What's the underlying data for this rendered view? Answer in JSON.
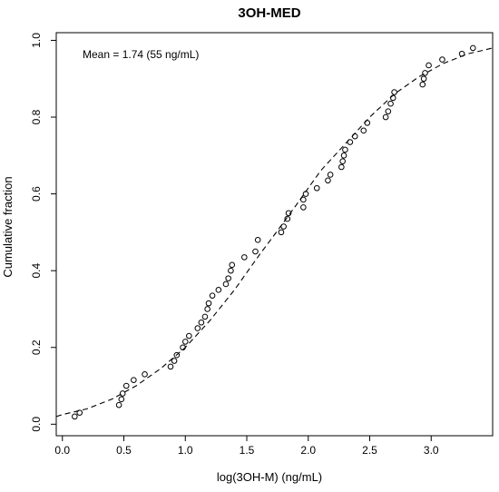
{
  "chart_data": {
    "type": "scatter",
    "title": "3OH-MED",
    "xlabel": "log(3OH-M) (ng/mL)",
    "ylabel": "Cumulative fraction",
    "annotation": "Mean = 1.74 (55 ng/mL)",
    "xlim": [
      -0.05,
      3.5
    ],
    "ylim": [
      -0.03,
      1.02
    ],
    "x_ticks": [
      "0.0",
      "0.5",
      "1.0",
      "1.5",
      "2.0",
      "2.5",
      "3.0"
    ],
    "y_ticks": [
      "0.0",
      "0.2",
      "0.4",
      "0.6",
      "0.8",
      "1.0"
    ],
    "grid": false,
    "series": [
      {
        "style": "open-circle",
        "x": [
          0.1,
          0.14,
          0.46,
          0.48,
          0.49,
          0.52,
          0.58,
          0.67,
          0.88,
          0.91,
          0.93,
          0.98,
          1.0,
          1.03,
          1.1,
          1.13,
          1.16,
          1.18,
          1.19,
          1.22,
          1.27,
          1.33,
          1.35,
          1.37,
          1.38,
          1.48,
          1.57,
          1.59,
          1.78,
          1.8,
          1.83,
          1.84,
          1.96,
          1.96,
          1.98,
          2.07,
          2.16,
          2.18,
          2.27,
          2.28,
          2.29,
          2.3,
          2.34,
          2.38,
          2.45,
          2.48,
          2.63,
          2.65,
          2.67,
          2.69,
          2.7,
          2.93,
          2.94,
          2.95,
          2.98,
          3.09,
          3.25,
          3.34
        ],
        "y": [
          0.02,
          0.03,
          0.05,
          0.065,
          0.08,
          0.1,
          0.115,
          0.13,
          0.15,
          0.165,
          0.18,
          0.2,
          0.215,
          0.23,
          0.25,
          0.265,
          0.28,
          0.3,
          0.315,
          0.335,
          0.35,
          0.365,
          0.38,
          0.4,
          0.415,
          0.435,
          0.45,
          0.48,
          0.5,
          0.515,
          0.535,
          0.55,
          0.565,
          0.585,
          0.6,
          0.615,
          0.635,
          0.65,
          0.67,
          0.685,
          0.7,
          0.715,
          0.735,
          0.75,
          0.765,
          0.785,
          0.8,
          0.815,
          0.835,
          0.85,
          0.865,
          0.885,
          0.9,
          0.915,
          0.935,
          0.95,
          0.965,
          0.98
        ]
      },
      {
        "style": "dashed-line",
        "x": [
          -0.05,
          0.0,
          0.2,
          0.4,
          0.6,
          0.8,
          1.0,
          1.2,
          1.4,
          1.6,
          1.74,
          1.9,
          2.1,
          2.3,
          2.5,
          2.7,
          2.9,
          3.1,
          3.3,
          3.5
        ],
        "y": [
          0.02,
          0.025,
          0.04,
          0.065,
          0.1,
          0.145,
          0.2,
          0.27,
          0.35,
          0.44,
          0.5,
          0.57,
          0.66,
          0.73,
          0.8,
          0.86,
          0.905,
          0.94,
          0.965,
          0.98
        ]
      }
    ]
  }
}
